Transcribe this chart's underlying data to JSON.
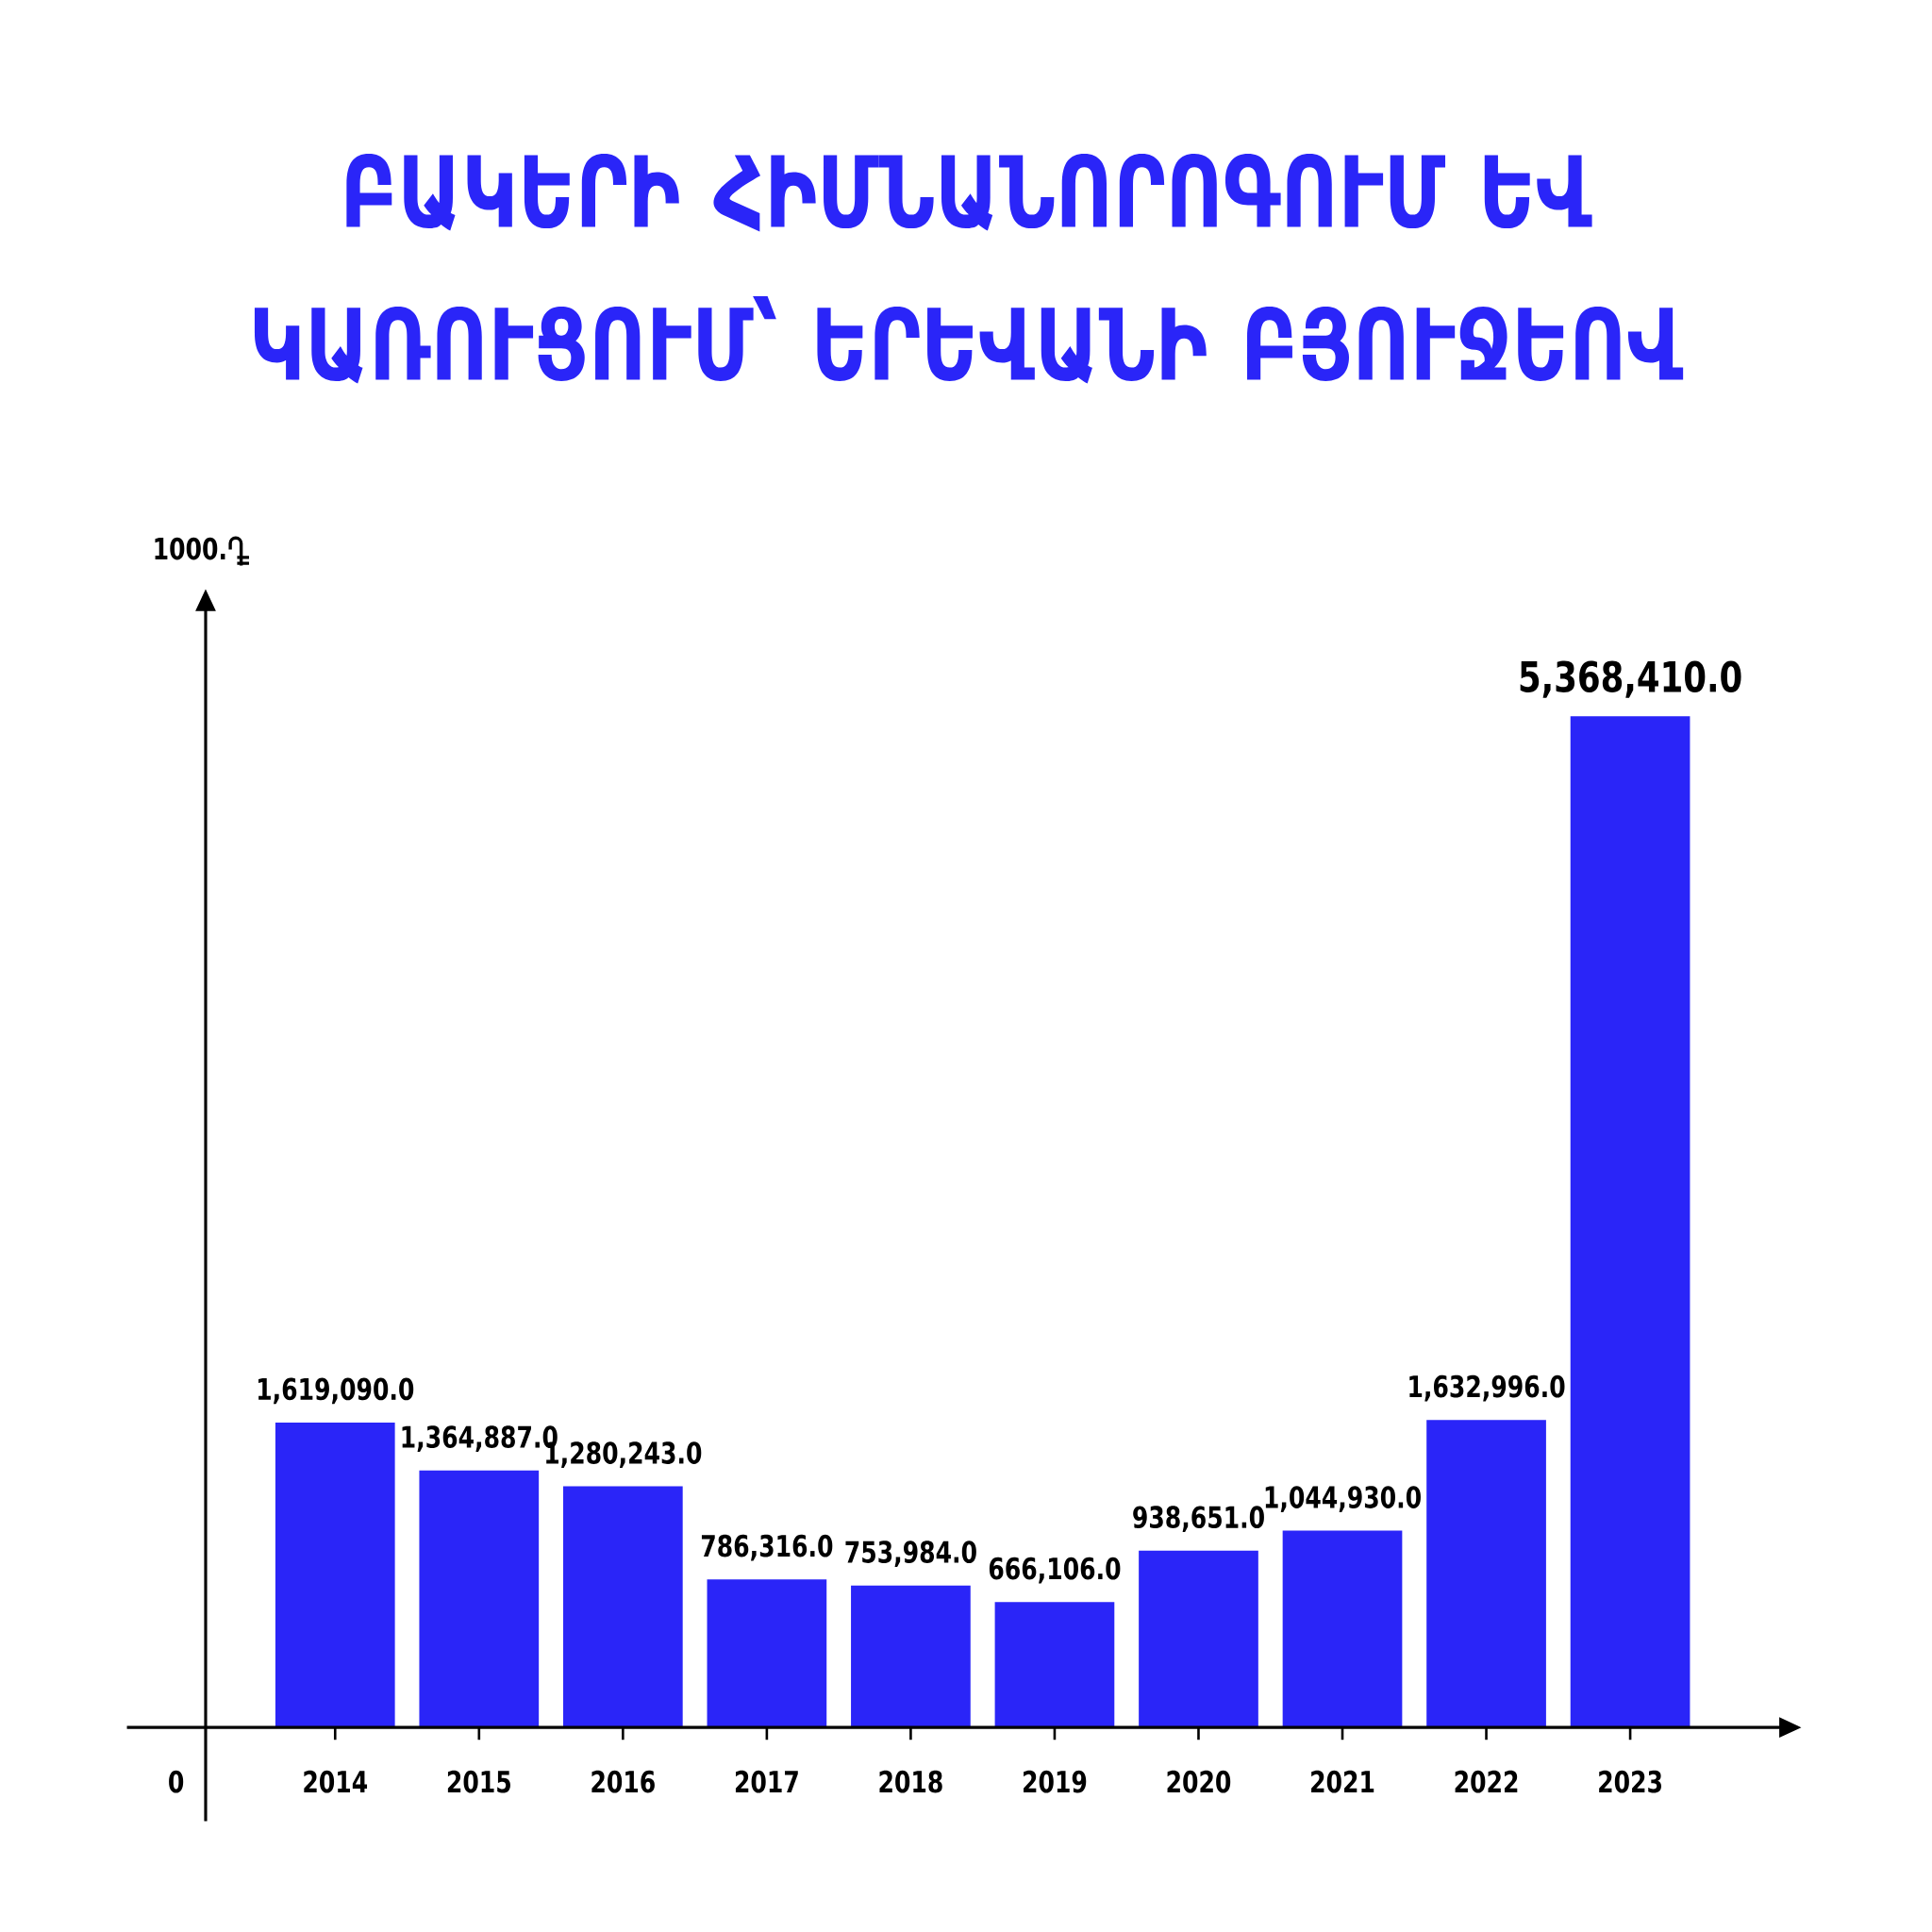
{
  "chart_data": {
    "type": "bar",
    "title": "ԲԱԿԵՐԻ ՀԻՄՆԱՆՈՐՈԳՈՒՄ ԵՎ ԿԱՌՈՒՑՈՒՄ՝ ԵՐԵՎԱՆԻ ԲՅՈՒՋԵՈՎ",
    "categories": [
      "2014",
      "2015",
      "2016",
      "2017",
      "2018",
      "2019",
      "2020",
      "2021",
      "2022",
      "2023"
    ],
    "values": [
      1619090.0,
      1364887.0,
      1280243.0,
      786316.0,
      753984.0,
      666106.0,
      938651.0,
      1044930.0,
      1632996.0,
      5368410.0
    ],
    "value_labels": [
      "1,619,090.0",
      "1,364,887.0",
      "1,280,243.0",
      "786,316.0",
      "753,984.0",
      "666,106.0",
      "938,651.0",
      "1,044,930.0",
      "1,632,996.0",
      "5,368,410.0"
    ],
    "color": "#2a25f8",
    "annotations": [
      "0",
      "1000."
    ]
  }
}
